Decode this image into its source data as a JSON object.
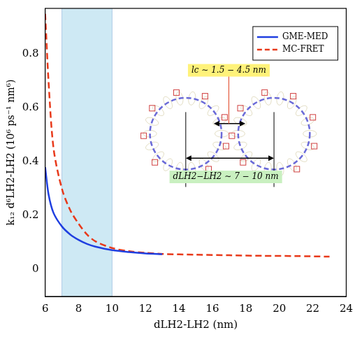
{
  "chart_data": {
    "type": "line",
    "x_label": "dLH2-LH2 (nm)",
    "y_label": "k₁₂ d⁶LH2-LH2 (10⁶ ps⁻¹ nm⁶)",
    "xlim": [
      6,
      24
    ],
    "xticks": [
      6,
      8,
      10,
      12,
      14,
      16,
      18,
      20,
      22,
      24
    ],
    "ylim": [
      -0.1,
      0.97
    ],
    "yticks": [
      0,
      0.2,
      0.4,
      0.6,
      0.8
    ],
    "grid": false,
    "legend": "upper right",
    "highlight_x": [
      7,
      10
    ],
    "annotations": [
      "lc ∼ 1.5 − 4.5 nm",
      "dLH2−LH2 ∼ 7 − 10 nm"
    ],
    "series": [
      {
        "name": "GME-MED",
        "color": "#1f3fe0",
        "line_style": "solid",
        "x": [
          6,
          6.2,
          6.5,
          7,
          7.5,
          8,
          8.5,
          9,
          10,
          11,
          12,
          13
        ],
        "values": [
          0.38,
          0.28,
          0.21,
          0.16,
          0.13,
          0.11,
          0.095,
          0.085,
          0.072,
          0.065,
          0.06,
          0.057
        ]
      },
      {
        "name": "MC-FRET",
        "color": "#e8391a",
        "line_style": "dashed",
        "x": [
          6,
          6.2,
          6.5,
          7,
          7.5,
          8,
          8.5,
          9,
          10,
          11,
          12,
          13,
          15,
          17,
          19,
          21,
          23
        ],
        "values": [
          0.95,
          0.7,
          0.45,
          0.3,
          0.22,
          0.17,
          0.13,
          0.105,
          0.08,
          0.068,
          0.062,
          0.058,
          0.055,
          0.053,
          0.051,
          0.05,
          0.048
        ]
      }
    ]
  }
}
